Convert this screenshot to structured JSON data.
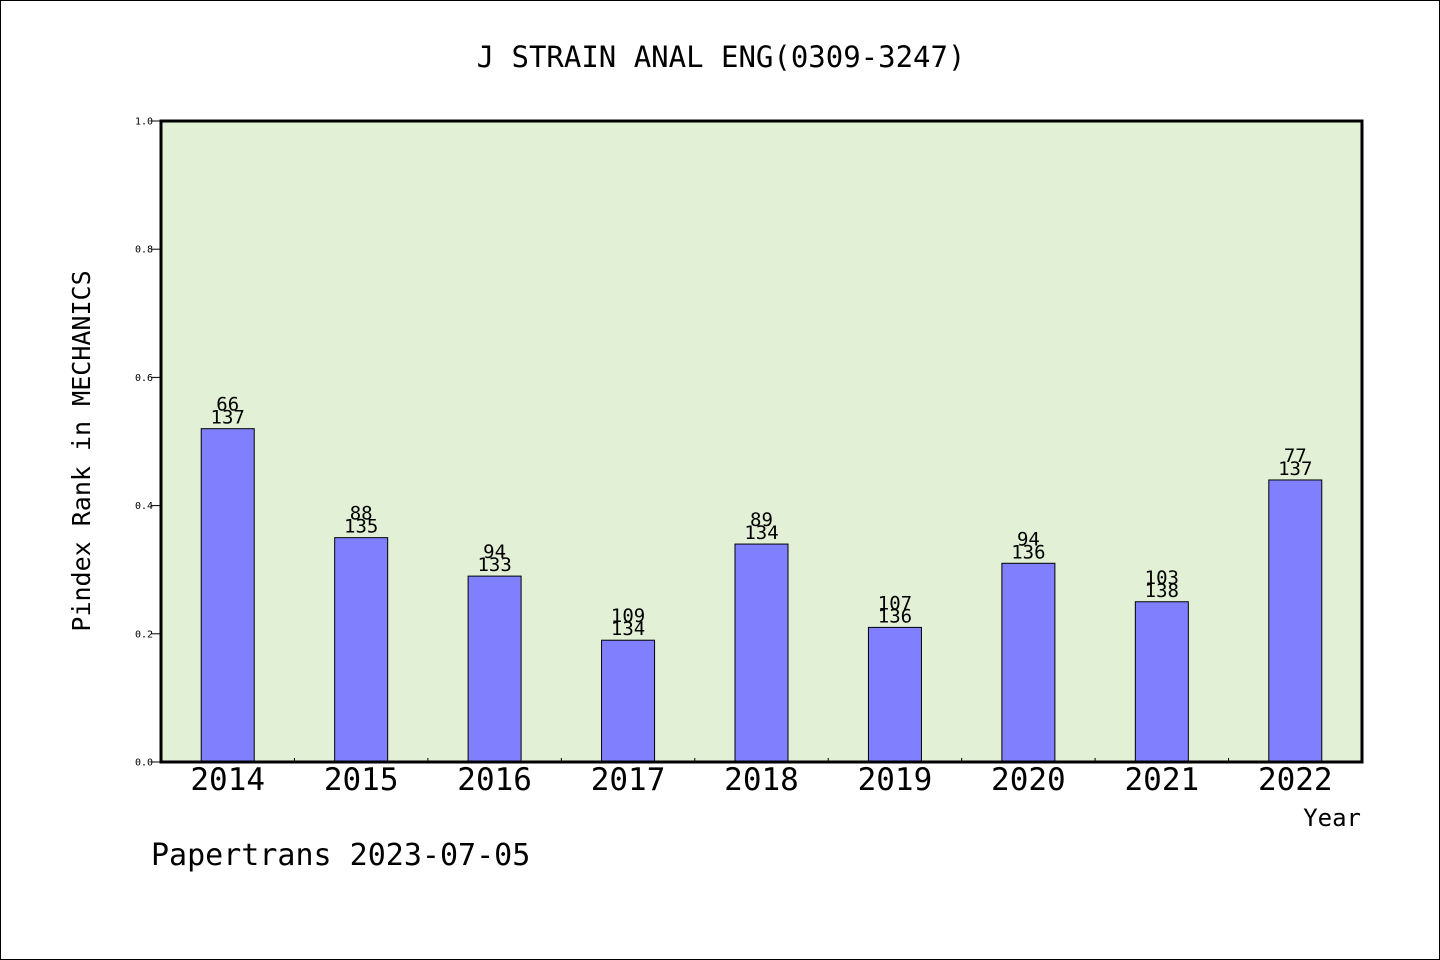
{
  "chart_data": {
    "type": "bar",
    "title": "J STRAIN ANAL ENG(0309-3247)",
    "xlabel": "Year",
    "ylabel": "Pindex Rank in MECHANICS",
    "ylim": [
      0,
      1.0
    ],
    "yticks": [
      "0.0",
      "0.2",
      "0.4",
      "0.6",
      "0.8",
      "1.0"
    ],
    "categories": [
      "2014",
      "2015",
      "2016",
      "2017",
      "2018",
      "2019",
      "2020",
      "2021",
      "2022"
    ],
    "values": [
      0.52,
      0.35,
      0.29,
      0.19,
      0.34,
      0.21,
      0.31,
      0.25,
      0.44
    ],
    "rank_labels": [
      "66",
      "88",
      "94",
      "109",
      "89",
      "107",
      "94",
      "103",
      "77"
    ],
    "total_labels": [
      "137",
      "135",
      "133",
      "134",
      "134",
      "136",
      "136",
      "138",
      "137"
    ],
    "grid": false,
    "colors": {
      "plot_background": "#e2f0d6",
      "bar_fill": "#8080ff",
      "bar_edge": "#000000"
    }
  },
  "footer": {
    "text": "Papertrans 2023-07-05"
  }
}
